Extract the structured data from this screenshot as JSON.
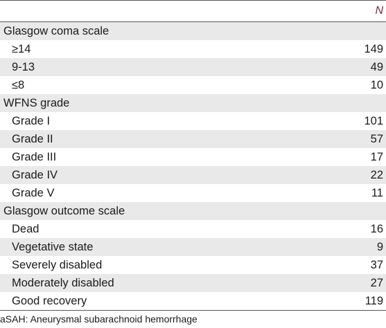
{
  "table": {
    "column_header": "N",
    "rows": [
      {
        "label": "Glasgow coma scale",
        "value": "",
        "type": "section"
      },
      {
        "label": "≥14",
        "value": "149",
        "type": "sub"
      },
      {
        "label": "9-13",
        "value": "49",
        "type": "sub"
      },
      {
        "label": "≤8",
        "value": "10",
        "type": "sub"
      },
      {
        "label": "WFNS grade",
        "value": "",
        "type": "section"
      },
      {
        "label": "Grade I",
        "value": "101",
        "type": "sub"
      },
      {
        "label": "Grade II",
        "value": "57",
        "type": "sub"
      },
      {
        "label": "Grade III",
        "value": "17",
        "type": "sub"
      },
      {
        "label": "Grade IV",
        "value": "22",
        "type": "sub"
      },
      {
        "label": "Grade V",
        "value": "11",
        "type": "sub"
      },
      {
        "label": "Glasgow outcome scale",
        "value": "",
        "type": "section"
      },
      {
        "label": "Dead",
        "value": "16",
        "type": "sub"
      },
      {
        "label": "Vegetative state",
        "value": "9",
        "type": "sub"
      },
      {
        "label": "Severely disabled",
        "value": "37",
        "type": "sub"
      },
      {
        "label": "Moderately disabled",
        "value": "27",
        "type": "sub"
      },
      {
        "label": "Good recovery",
        "value": "119",
        "type": "sub"
      }
    ]
  },
  "footnote": "aSAH: Aneurysmal subarachnoid hemorrhage",
  "colors": {
    "header_text": "#7a2b3c",
    "row_shade": "#e9e9e9",
    "rule": "#555555"
  }
}
